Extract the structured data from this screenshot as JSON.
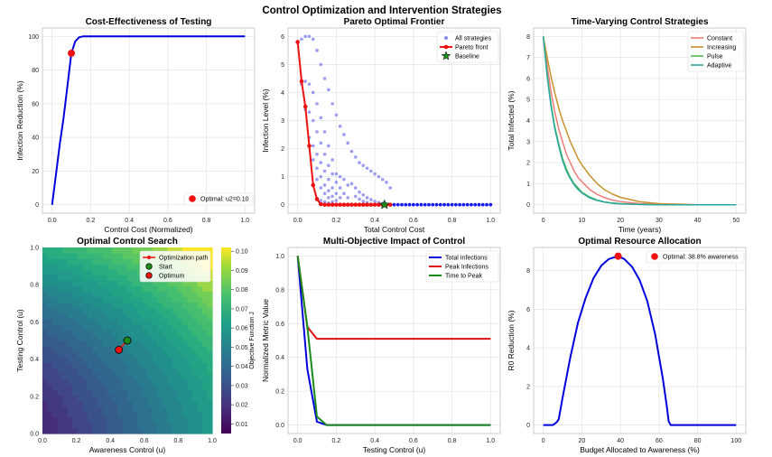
{
  "figure": {
    "title": "Control Optimization and Intervention Strategies"
  },
  "colors": {
    "blue": "#0000dd",
    "red": "#ee1111",
    "green": "#1a8a1a",
    "grid": "#e4e4e4",
    "frame": "#bfbfbf"
  },
  "chart_data": [
    {
      "id": "cost_effectiveness",
      "type": "line",
      "title": "Cost-Effectiveness of Testing",
      "xlabel": "Control Cost (Normalized)",
      "ylabel": "Infection Reduction (%)",
      "xlim": [
        -0.05,
        1.05
      ],
      "ylim": [
        -5,
        105
      ],
      "xticks": [
        0.0,
        0.2,
        0.4,
        0.6,
        0.8,
        1.0
      ],
      "xtick_labels": [
        "0.0",
        "0.2",
        "0.4",
        "0.6",
        "0.8",
        "1.0"
      ],
      "yticks": [
        0,
        20,
        40,
        60,
        80,
        100
      ],
      "ytick_labels": [
        "0",
        "20",
        "40",
        "60",
        "80",
        "100"
      ],
      "grid": true,
      "legend_position": "lower-right",
      "series": [
        {
          "color": "#0000dd",
          "x": [
            0.0,
            0.02,
            0.04,
            0.06,
            0.08,
            0.1,
            0.12,
            0.14,
            0.16,
            0.2,
            0.3,
            0.5,
            0.7,
            1.0
          ],
          "y": [
            0,
            18,
            36,
            52,
            71,
            90,
            97,
            99.5,
            100,
            100,
            100,
            100,
            100,
            100
          ]
        }
      ],
      "markers": [
        {
          "name": "Optimal: u2=0.10",
          "x": 0.1,
          "y": 90,
          "color": "#ee1111"
        }
      ]
    },
    {
      "id": "pareto",
      "type": "scatter",
      "title": "Pareto Optimal Frontier",
      "xlabel": "Total Control Cost",
      "ylabel": "Infection Level (%)",
      "xlim": [
        -0.05,
        1.05
      ],
      "ylim": [
        -0.3,
        6.3
      ],
      "xticks": [
        0.0,
        0.2,
        0.4,
        0.6,
        0.8,
        1.0
      ],
      "xtick_labels": [
        "0.0",
        "0.2",
        "0.4",
        "0.6",
        "0.8",
        "1.0"
      ],
      "yticks": [
        0,
        1,
        2,
        3,
        4,
        5,
        6
      ],
      "ytick_labels": [
        "0",
        "1",
        "2",
        "3",
        "4",
        "5",
        "6"
      ],
      "grid": true,
      "legend_position": "top-right",
      "all_strategies": {
        "name": "All strategies",
        "color": "#8c8cf0",
        "points": [
          [
            0.0,
            5.8
          ],
          [
            0.02,
            5.9
          ],
          [
            0.04,
            6.0
          ],
          [
            0.06,
            6.0
          ],
          [
            0.08,
            5.9
          ],
          [
            0.1,
            5.5
          ],
          [
            0.12,
            5.0
          ],
          [
            0.14,
            4.5
          ],
          [
            0.16,
            4.1
          ],
          [
            0.18,
            3.6
          ],
          [
            0.2,
            3.2
          ],
          [
            0.22,
            2.8
          ],
          [
            0.24,
            2.5
          ],
          [
            0.26,
            2.2
          ],
          [
            0.28,
            1.9
          ],
          [
            0.3,
            1.7
          ],
          [
            0.32,
            1.5
          ],
          [
            0.34,
            1.4
          ],
          [
            0.36,
            1.3
          ],
          [
            0.38,
            1.2
          ],
          [
            0.4,
            1.1
          ],
          [
            0.42,
            1.0
          ],
          [
            0.44,
            0.9
          ],
          [
            0.46,
            0.8
          ],
          [
            0.48,
            0.6
          ],
          [
            0.02,
            4.3
          ],
          [
            0.04,
            4.4
          ],
          [
            0.06,
            4.3
          ],
          [
            0.08,
            4.0
          ],
          [
            0.1,
            3.6
          ],
          [
            0.12,
            3.1
          ],
          [
            0.14,
            2.6
          ],
          [
            0.16,
            2.1
          ],
          [
            0.18,
            1.6
          ],
          [
            0.2,
            1.1
          ],
          [
            0.04,
            3.4
          ],
          [
            0.06,
            3.3
          ],
          [
            0.08,
            3.0
          ],
          [
            0.1,
            2.6
          ],
          [
            0.12,
            2.2
          ],
          [
            0.14,
            1.8
          ],
          [
            0.16,
            1.4
          ],
          [
            0.18,
            1.1
          ],
          [
            0.2,
            0.8
          ],
          [
            0.22,
            0.6
          ],
          [
            0.24,
            0.4
          ],
          [
            0.26,
            0.25
          ],
          [
            0.06,
            2.4
          ],
          [
            0.08,
            2.1
          ],
          [
            0.1,
            1.8
          ],
          [
            0.12,
            1.5
          ],
          [
            0.14,
            1.2
          ],
          [
            0.16,
            0.9
          ],
          [
            0.18,
            0.6
          ],
          [
            0.2,
            0.4
          ],
          [
            0.22,
            0.25
          ],
          [
            0.08,
            1.6
          ],
          [
            0.1,
            1.3
          ],
          [
            0.12,
            1.0
          ],
          [
            0.14,
            0.7
          ],
          [
            0.16,
            0.5
          ],
          [
            0.18,
            0.3
          ],
          [
            0.2,
            0.15
          ],
          [
            0.1,
            0.9
          ],
          [
            0.12,
            0.6
          ],
          [
            0.14,
            0.4
          ],
          [
            0.16,
            0.25
          ],
          [
            0.18,
            0.1
          ],
          [
            0.28,
            0.75
          ],
          [
            0.3,
            0.6
          ],
          [
            0.32,
            0.45
          ],
          [
            0.34,
            0.35
          ],
          [
            0.36,
            0.25
          ],
          [
            0.38,
            0.18
          ],
          [
            0.4,
            0.12
          ],
          [
            0.42,
            0.08
          ],
          [
            0.44,
            0.05
          ],
          [
            0.24,
            0.9
          ],
          [
            0.26,
            0.7
          ],
          [
            0.22,
            1.0
          ],
          [
            0.3,
            0.3
          ],
          [
            0.32,
            0.2
          ],
          [
            0.34,
            0.12
          ],
          [
            0.36,
            0.08
          ],
          [
            0.12,
            0.15
          ],
          [
            0.14,
            0.1
          ],
          [
            0.16,
            0.06
          ]
        ]
      },
      "front": {
        "name": "Pareto front",
        "color": "#ee1111",
        "x": [
          0.0,
          0.02,
          0.04,
          0.06,
          0.08,
          0.1,
          0.12,
          0.14,
          0.16,
          0.18,
          0.2,
          0.22,
          0.24,
          0.26,
          0.28,
          0.3,
          0.32,
          0.34,
          0.36,
          0.38,
          0.4,
          0.42,
          0.44,
          0.46,
          0.48
        ],
        "y": [
          5.8,
          4.4,
          3.5,
          2.1,
          0.7,
          0.2,
          0.02,
          0,
          0,
          0,
          0,
          0,
          0,
          0,
          0,
          0,
          0,
          0,
          0,
          0,
          0,
          0,
          0,
          0,
          0
        ]
      },
      "zero_points": {
        "color": "#1a1aee",
        "x": [
          0.48,
          0.5,
          0.52,
          0.54,
          0.56,
          0.58,
          0.6,
          0.62,
          0.64,
          0.66,
          0.68,
          0.7,
          0.72,
          0.74,
          0.76,
          0.78,
          0.8,
          0.82,
          0.84,
          0.86,
          0.88,
          0.9,
          0.92,
          0.94,
          0.96,
          0.98,
          1.0
        ]
      },
      "baseline": {
        "name": "Baseline",
        "x": 0.45,
        "y": 0.0,
        "color": "#1a8a1a"
      }
    },
    {
      "id": "time_varying",
      "type": "line",
      "title": "Time-Varying Control Strategies",
      "xlabel": "Time (years)",
      "ylabel": "Total Infected (%)",
      "xlim": [
        -2.5,
        52.5
      ],
      "ylim": [
        -0.4,
        8.4
      ],
      "xticks": [
        0,
        10,
        20,
        30,
        40,
        50
      ],
      "xtick_labels": [
        "0",
        "10",
        "20",
        "30",
        "40",
        "50"
      ],
      "yticks": [
        0,
        1,
        2,
        3,
        4,
        5,
        6,
        7,
        8
      ],
      "ytick_labels": [
        "0",
        "1",
        "2",
        "3",
        "4",
        "5",
        "6",
        "7",
        "8"
      ],
      "grid": true,
      "legend_position": "top-right",
      "series": [
        {
          "name": "Constant",
          "color": "#f07a7a",
          "x": [
            0,
            1,
            2,
            3,
            4,
            5,
            6,
            7,
            8,
            9,
            10,
            12,
            14,
            16,
            18,
            20,
            25,
            30,
            40,
            50
          ],
          "y": [
            8.0,
            6.6,
            5.4,
            4.4,
            3.6,
            3.0,
            2.4,
            2.0,
            1.6,
            1.3,
            1.1,
            0.73,
            0.49,
            0.33,
            0.22,
            0.15,
            0.05,
            0.02,
            0.0,
            0.0
          ]
        },
        {
          "name": "Increasing",
          "color": "#c8912a",
          "x": [
            0,
            1,
            2,
            3,
            4,
            5,
            6,
            7,
            8,
            9,
            10,
            12,
            14,
            16,
            18,
            20,
            25,
            30,
            40,
            50
          ],
          "y": [
            8.0,
            7.0,
            6.1,
            5.3,
            4.6,
            4.0,
            3.5,
            3.0,
            2.6,
            2.2,
            1.9,
            1.4,
            1.0,
            0.7,
            0.5,
            0.35,
            0.14,
            0.05,
            0.0,
            0.0
          ]
        },
        {
          "name": "Pulse",
          "color": "#4db84d",
          "x": [
            0,
            1,
            2,
            3,
            4,
            5,
            6,
            7,
            8,
            9,
            10,
            12,
            14,
            16,
            18,
            20,
            25,
            30,
            40,
            50
          ],
          "y": [
            8.0,
            6.2,
            4.8,
            3.7,
            2.9,
            2.2,
            1.7,
            1.3,
            1.0,
            0.8,
            0.6,
            0.37,
            0.22,
            0.13,
            0.08,
            0.05,
            0.01,
            0.0,
            0.0,
            0.0
          ]
        },
        {
          "name": "Adaptive",
          "color": "#2aa8a0",
          "x": [
            0,
            1,
            2,
            3,
            4,
            5,
            6,
            7,
            8,
            9,
            10,
            12,
            14,
            16,
            18,
            20,
            25,
            30,
            40,
            50
          ],
          "y": [
            8.0,
            6.1,
            4.7,
            3.6,
            2.8,
            2.1,
            1.6,
            1.25,
            0.95,
            0.73,
            0.56,
            0.33,
            0.2,
            0.12,
            0.07,
            0.04,
            0.01,
            0.0,
            0.0,
            0.0
          ]
        }
      ]
    },
    {
      "id": "optimal_search",
      "type": "heatmap",
      "title": "Optimal Control Search",
      "xlabel": "Awareness Control (u\u0001)",
      "ylabel": "Testing Control (u\u0002)",
      "colorbar_label": "Objective Function J",
      "xlim": [
        0,
        1
      ],
      "ylim": [
        0,
        1
      ],
      "xticks": [
        0.0,
        0.2,
        0.4,
        0.6,
        0.8,
        1.0
      ],
      "xtick_labels": [
        "0.0",
        "0.2",
        "0.4",
        "0.6",
        "0.8",
        "1.0"
      ],
      "yticks": [
        0.0,
        0.2,
        0.4,
        0.6,
        0.8,
        1.0
      ],
      "ytick_labels": [
        "0.0",
        "0.2",
        "0.4",
        "0.6",
        "0.8",
        "1.0"
      ],
      "colorbar_ticks": [
        0.01,
        0.02,
        0.03,
        0.04,
        0.05,
        0.06,
        0.07,
        0.08,
        0.09,
        0.1
      ],
      "colorbar_tick_labels": [
        "0.01",
        "0.02",
        "0.03",
        "0.04",
        "0.05",
        "0.06",
        "0.07",
        "0.08",
        "0.09",
        "0.10"
      ],
      "legend_position": "top-right",
      "path": {
        "name": "Optimization path",
        "color": "#ee1111",
        "x": [
          0.5,
          0.45
        ],
        "y": [
          0.5,
          0.45
        ]
      },
      "start": {
        "name": "Start",
        "x": 0.5,
        "y": 0.5,
        "color": "#1a8a1a"
      },
      "optimum": {
        "name": "Optimum",
        "x": 0.45,
        "y": 0.45,
        "color": "#ee1111"
      }
    },
    {
      "id": "multi_objective",
      "type": "line",
      "title": "Multi-Objective Impact of Control",
      "xlabel": "Testing Control (u\u0002)",
      "ylabel": "Normalized Metric Value",
      "xlim": [
        -0.05,
        1.05
      ],
      "ylim": [
        -0.05,
        1.05
      ],
      "xticks": [
        0.0,
        0.2,
        0.4,
        0.6,
        0.8,
        1.0
      ],
      "xtick_labels": [
        "0.0",
        "0.2",
        "0.4",
        "0.6",
        "0.8",
        "1.0"
      ],
      "yticks": [
        0.0,
        0.2,
        0.4,
        0.6,
        0.8,
        1.0
      ],
      "ytick_labels": [
        "0.0",
        "0.2",
        "0.4",
        "0.6",
        "0.8",
        "1.0"
      ],
      "grid": true,
      "legend_position": "top-right",
      "series": [
        {
          "name": "Total Infections",
          "color": "#0000dd",
          "x": [
            0.0,
            0.05,
            0.1,
            0.15,
            0.2,
            1.0
          ],
          "y": [
            1.0,
            0.33,
            0.02,
            0.0,
            0.0,
            0.0
          ]
        },
        {
          "name": "Peak Infections",
          "color": "#dd1111",
          "x": [
            0.0,
            0.05,
            0.1,
            0.15,
            1.0
          ],
          "y": [
            1.0,
            0.58,
            0.51,
            0.51,
            0.51
          ]
        },
        {
          "name": "Time to Peak",
          "color": "#1a8a1a",
          "x": [
            0.0,
            0.05,
            0.1,
            0.15,
            1.0
          ],
          "y": [
            1.0,
            0.58,
            0.05,
            0.0,
            0.0
          ]
        }
      ]
    },
    {
      "id": "resource_allocation",
      "type": "line",
      "title": "Optimal Resource Allocation",
      "xlabel": "Budget Allocated to Awareness (%)",
      "ylabel": "R0 Reduction (%)",
      "xlim": [
        -5,
        105
      ],
      "ylim": [
        -0.44,
        9.2
      ],
      "xticks": [
        0,
        20,
        40,
        60,
        80,
        100
      ],
      "xtick_labels": [
        "0",
        "20",
        "40",
        "60",
        "80",
        "100"
      ],
      "yticks": [
        0,
        2,
        4,
        6,
        8
      ],
      "ytick_labels": [
        "0",
        "2",
        "4",
        "6",
        "8"
      ],
      "grid": true,
      "legend_position": "top-right",
      "series": [
        {
          "color": "#0000dd",
          "x": [
            0,
            5,
            7,
            8,
            10,
            14,
            18,
            22,
            26,
            30,
            34,
            38.8,
            42,
            46,
            50,
            54,
            58,
            62,
            64,
            65,
            66,
            70,
            80,
            90,
            100
          ],
          "y": [
            0,
            0,
            0.15,
            0.3,
            1.4,
            3.5,
            5.3,
            6.6,
            7.6,
            8.25,
            8.6,
            8.75,
            8.6,
            8.2,
            7.5,
            6.4,
            4.7,
            2.4,
            1.0,
            0.2,
            0,
            0,
            0,
            0,
            0
          ]
        }
      ],
      "markers": [
        {
          "name": "Optimal: 38.8% awareness",
          "x": 38.8,
          "y": 8.75,
          "color": "#ee1111"
        }
      ]
    }
  ]
}
